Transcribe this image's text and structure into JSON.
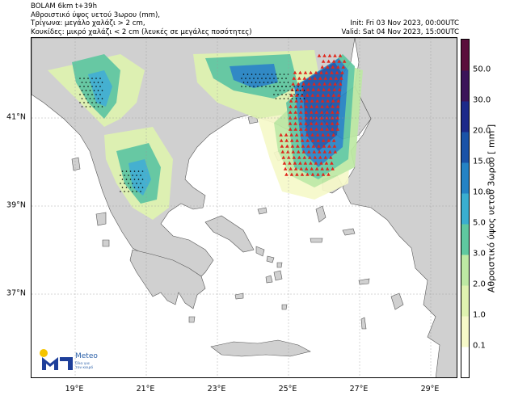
{
  "header": {
    "line1": "BOLAM 6km t+39h",
    "line2": "Αθροιστικό ύψος υετού 3ωρου (mm),",
    "line3": "Τρίγωνα: μεγάλο χαλάζι > 2 cm,",
    "line4": "Κουκίδες: μικρό χαλάζι < 2 cm (λευκές σε μεγάλες ποσότητες)",
    "init": "Init: Fri 03 Nov 2023, 00:00UTC",
    "valid": "Valid: Sat 04 Nov 2023, 15:00UTC"
  },
  "axes": {
    "x_ticks": [
      "19°E",
      "21°E",
      "23°E",
      "25°E",
      "27°E",
      "29°E"
    ],
    "y_ticks": [
      "41°N",
      "39°N",
      "37°N"
    ]
  },
  "colorbar": {
    "title": "Αθροιστικό ύψος υετού 3ωρου [ mm ]",
    "levels": [
      "0.1",
      "1.0",
      "2.0",
      "3.0",
      "5.0",
      "10.0",
      "15.0",
      "20.0",
      "30.0",
      "50.0"
    ],
    "colors": [
      "#ffffff",
      "#f6f9c9",
      "#dff3b0",
      "#bde9a3",
      "#5fc8a0",
      "#3aaed0",
      "#2483c5",
      "#1a53a8",
      "#1c2a8a",
      "#3b1459",
      "#5a0f3c"
    ]
  },
  "logo": {
    "name": "Meteo",
    "tagline1": "Όλα για",
    "tagline2": "τον καιρό",
    "colors": {
      "blue": "#1e3f9a",
      "yellow": "#f5c400"
    }
  },
  "map": {
    "land_color": "#d0d0d0",
    "sea_color": "#ffffff",
    "hail_large_color": "#e0261b",
    "hail_small_color": "#000000"
  }
}
